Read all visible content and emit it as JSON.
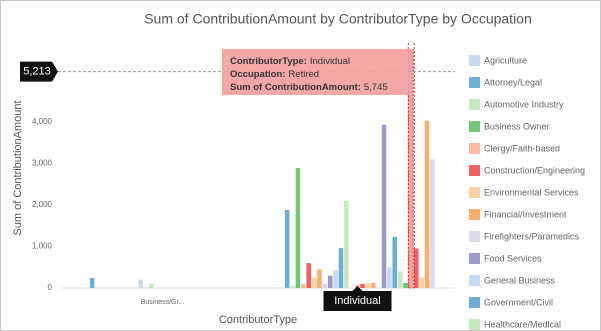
{
  "chart_data": {
    "type": "bar",
    "title": "Sum of ContributionAmount by ContributorType by Occupation",
    "ylabel": "Sum of ContributionAmount",
    "xlabel": "ContributorType",
    "categories": [
      "Business/Gr...",
      "Individual"
    ],
    "highlight_category": 1,
    "ylim": [
      0,
      6000
    ],
    "yticks": [
      0,
      {
        "value": 1000,
        "label": "1,000"
      },
      {
        "value": 2000,
        "label": "2,000"
      },
      {
        "value": 3000,
        "label": "3,000"
      },
      {
        "value": 4000,
        "label": "4,000"
      }
    ],
    "grid": false,
    "crosshair": {
      "value": 5213,
      "label": "5,213"
    },
    "tooltip": {
      "series": 24,
      "category": 1,
      "lines": [
        {
          "key": "ContributorType:",
          "value": "Individual"
        },
        {
          "key": "Occupation:",
          "value": "Retired"
        },
        {
          "key": "Sum of ContributionAmount:",
          "value": "5,745"
        }
      ]
    },
    "series": [
      {
        "name": "Agriculture",
        "color": "#c6dbef",
        "values": [
          null,
          null
        ]
      },
      {
        "name": "Attorney/Legal",
        "color": "#6baed6",
        "values": [
          240,
          1880
        ]
      },
      {
        "name": "Automotive Industry",
        "color": "#c7e9c0",
        "values": [
          null,
          60
        ]
      },
      {
        "name": "Business Owner",
        "color": "#74c476",
        "values": [
          null,
          2890
        ]
      },
      {
        "name": "Clergy/Faith-based",
        "color": "#fcbba1",
        "values": [
          null,
          100
        ]
      },
      {
        "name": "Construction/Engineering",
        "color": "#f16161",
        "values": [
          null,
          600
        ]
      },
      {
        "name": "Environmental Services",
        "color": "#fdd0a2",
        "values": [
          null,
          250
        ]
      },
      {
        "name": "Financial/Investment",
        "color": "#fdae6b",
        "values": [
          null,
          450
        ]
      },
      {
        "name": "Firefighters/Paramedics",
        "color": "#dadaeb",
        "values": [
          null,
          100
        ]
      },
      {
        "name": "Food Services",
        "color": "#9e9ac8",
        "values": [
          null,
          300
        ]
      },
      {
        "name": "General Business",
        "color": "#c6dbef",
        "values": [
          200,
          430
        ]
      },
      {
        "name": "Government/Civil",
        "color": "#6baed6",
        "values": [
          null,
          960
        ]
      },
      {
        "name": "Healthcare/Medical",
        "color": "#c7e9c0",
        "values": [
          100,
          2100
        ]
      },
      {
        "name": null,
        "color": "#74c476",
        "values": [
          null,
          null
        ]
      },
      {
        "name": null,
        "color": "#fcbba1",
        "values": [
          null,
          80
        ]
      },
      {
        "name": null,
        "color": "#f16161",
        "values": [
          null,
          100
        ]
      },
      {
        "name": null,
        "color": "#fdd0a2",
        "values": [
          null,
          120
        ]
      },
      {
        "name": null,
        "color": "#fdae6b",
        "values": [
          null,
          120
        ]
      },
      {
        "name": null,
        "color": "#dadaeb",
        "values": [
          null,
          null
        ]
      },
      {
        "name": null,
        "color": "#9e9ac8",
        "values": [
          null,
          3930
        ]
      },
      {
        "name": null,
        "color": "#c6dbef",
        "values": [
          null,
          500
        ]
      },
      {
        "name": null,
        "color": "#6baed6",
        "values": [
          null,
          1230
        ]
      },
      {
        "name": null,
        "color": "#c7e9c0",
        "values": [
          null,
          400
        ]
      },
      {
        "name": null,
        "color": "#74c476",
        "values": [
          null,
          120
        ]
      },
      {
        "name": null,
        "color": "#f4a6a6",
        "values": [
          null,
          5745
        ]
      },
      {
        "name": null,
        "color": "#f16161",
        "values": [
          null,
          950
        ]
      },
      {
        "name": null,
        "color": "#fdd0a2",
        "values": [
          null,
          250
        ]
      },
      {
        "name": null,
        "color": "#fdae6b",
        "values": [
          null,
          4030
        ]
      },
      {
        "name": null,
        "color": "#dadaeb",
        "values": [
          null,
          3100
        ]
      }
    ]
  }
}
